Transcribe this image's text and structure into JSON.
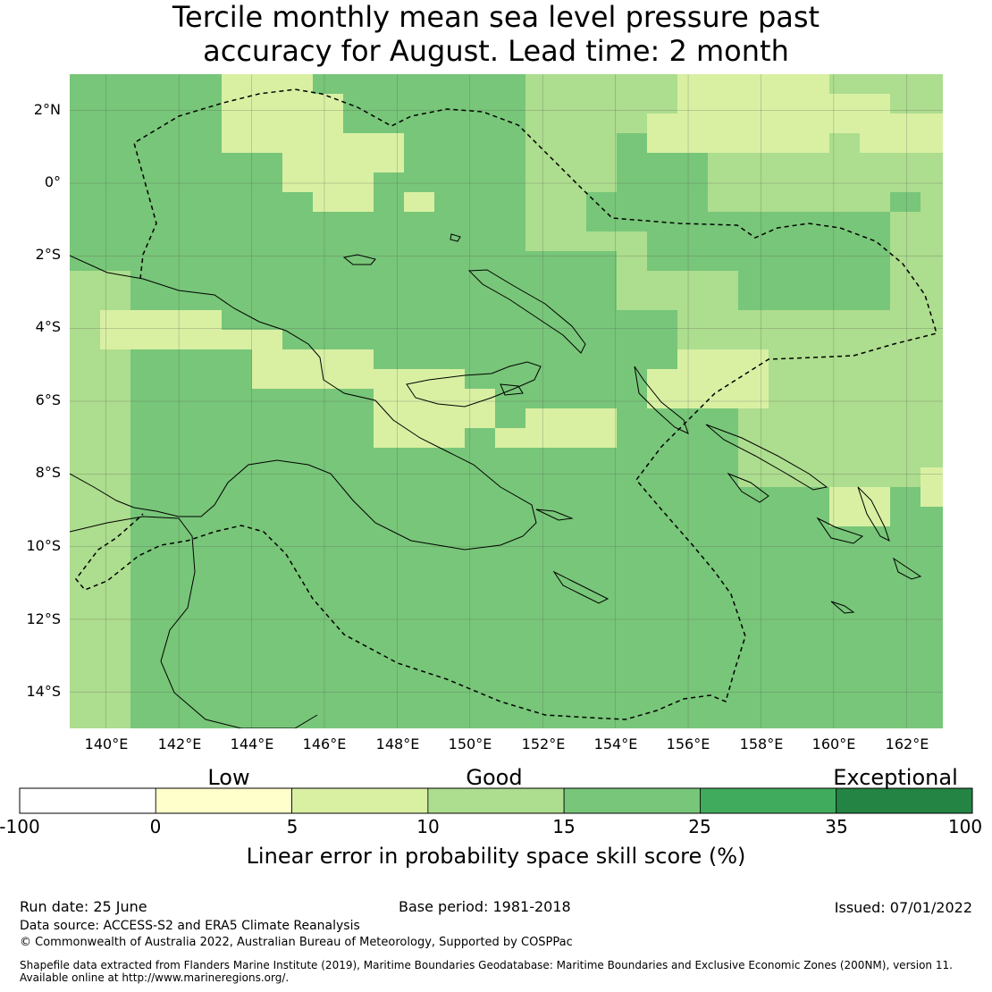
{
  "title_line1": "Tercile monthly mean sea level pressure past",
  "title_line2": "accuracy for August. Lead time: 2 month",
  "map": {
    "lat_labels": [
      "2°N",
      "0°",
      "2°S",
      "4°S",
      "6°S",
      "8°S",
      "10°S",
      "12°S",
      "14°S"
    ],
    "lon_labels": [
      "140°E",
      "142°E",
      "144°E",
      "146°E",
      "148°E",
      "150°E",
      "152°E",
      "154°E",
      "156°E",
      "158°E",
      "160°E",
      "162°E"
    ],
    "extent": {
      "lon_min": 139,
      "lon_max": 163,
      "lat_min": -15,
      "lat_max": 3
    }
  },
  "colorbar": {
    "category_labels": [
      "Low",
      "Good",
      "Exceptional"
    ],
    "ticks": [
      "-100",
      "0",
      "5",
      "10",
      "15",
      "25",
      "35",
      "100"
    ],
    "colors": [
      "#ffffff",
      "#ffffcc",
      "#d9f0a3",
      "#addd8e",
      "#78c679",
      "#41ab5d",
      "#238443"
    ],
    "title": "Linear error in probability space skill score (%)"
  },
  "footer": {
    "run_date": "Run date: 25 June",
    "base_period": "Base period: 1981-2018",
    "issued": "Issued: 07/01/2022",
    "data_source": "Data source: ACCESS-S2 and ERA5 Climate Reanalysis",
    "copyright": "© Commonwealth of Australia 2022, Australian Bureau of Meteorology, Supported by COSPPac",
    "shapefile_line1": "Shapefile data extracted from Flanders Marine Institute (2019), Maritime Boundaries Geodatabase: Maritime Boundaries and Exclusive Economic Zones (200NM), version 11.",
    "shapefile_line2": "Available online at http://www.marineregions.org/."
  }
}
